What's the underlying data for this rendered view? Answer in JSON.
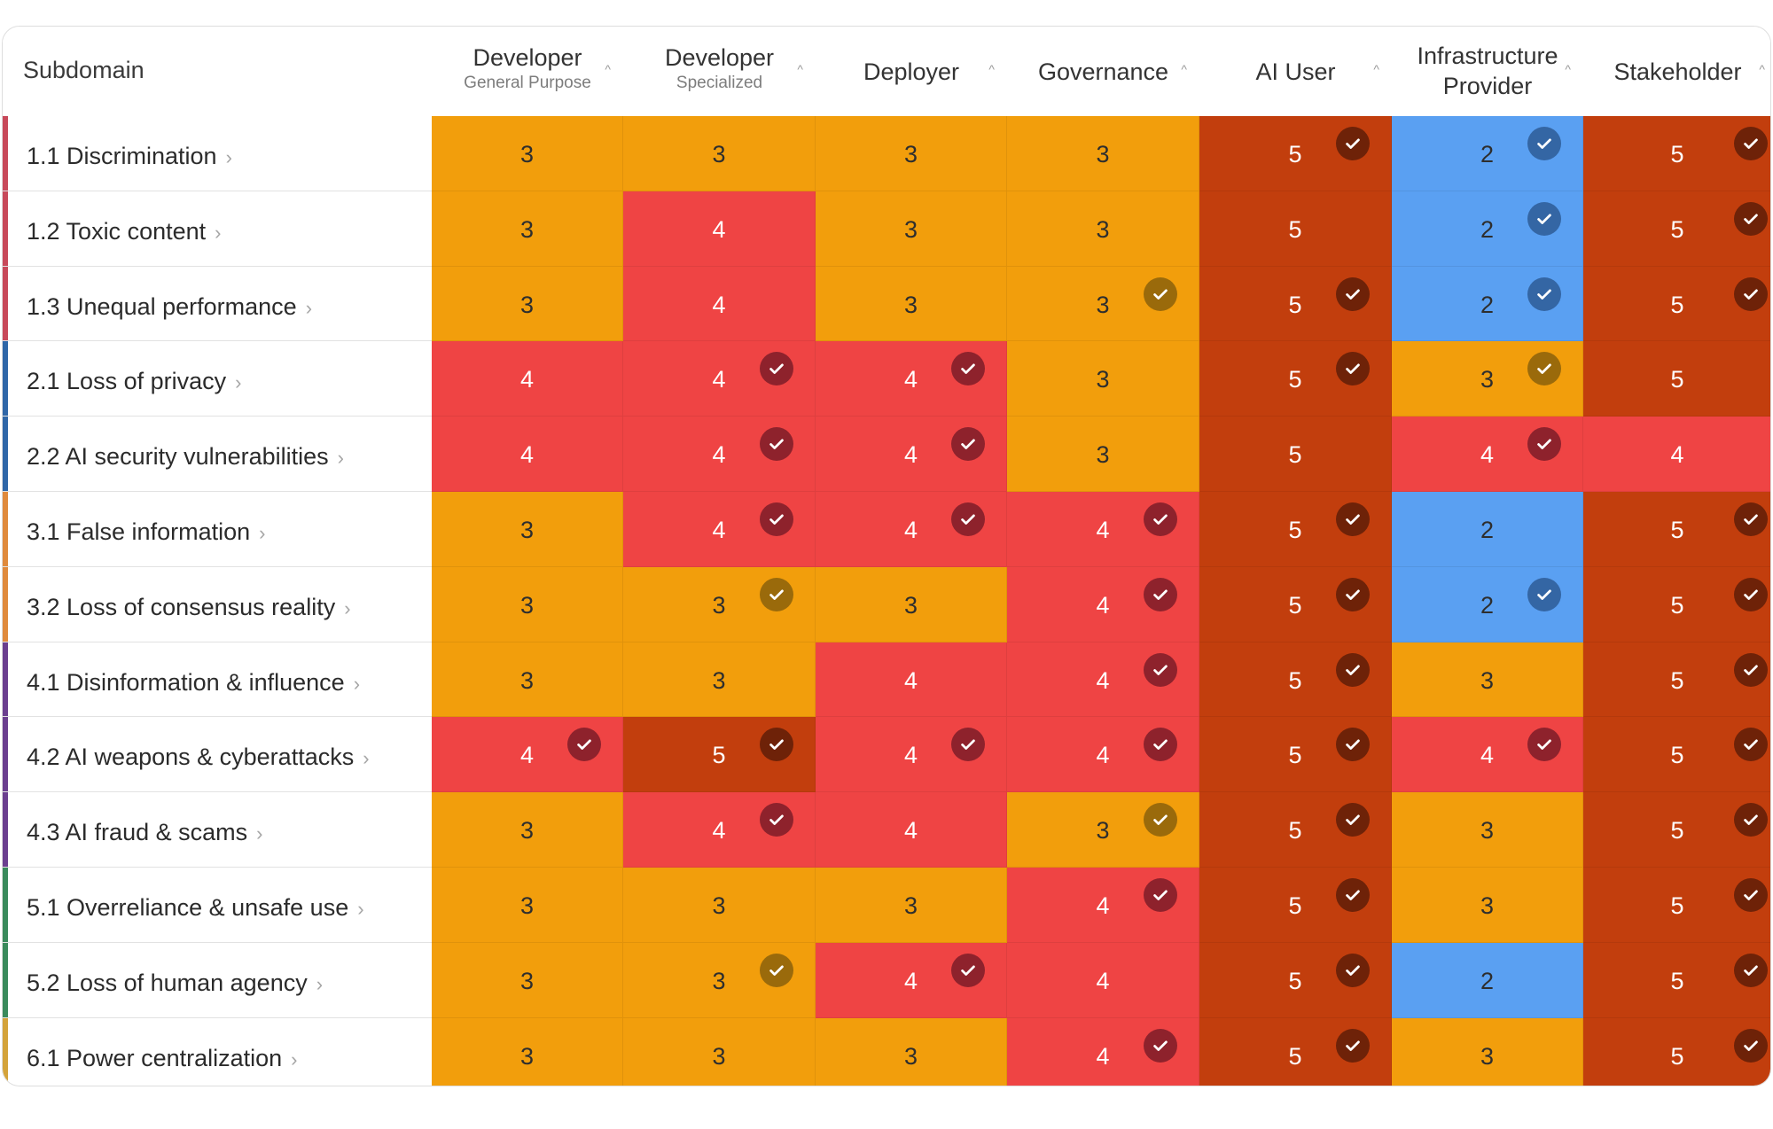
{
  "header": {
    "subdomain_label": "Subdomain",
    "columns": [
      {
        "title": "Developer",
        "subtitle": "General Purpose"
      },
      {
        "title": "Developer",
        "subtitle": "Specialized"
      },
      {
        "title": "Deployer",
        "subtitle": ""
      },
      {
        "title": "Governance",
        "subtitle": ""
      },
      {
        "title": "AI User",
        "subtitle": ""
      },
      {
        "title": "Infrastructure",
        "subtitle": "Provider"
      },
      {
        "title": "Stakeholder",
        "subtitle": ""
      }
    ],
    "sort_icon": "chevron-up-icon"
  },
  "colors": {
    "score_2": "#5aa0f2",
    "score_3": "#f29e0c",
    "score_4": "#ef4444",
    "score_5": "#c23e0d"
  },
  "rows": [
    {
      "label": "1.1 Discrimination",
      "domain_color": "#c8495a",
      "scores": [
        3,
        3,
        3,
        3,
        5,
        2,
        5
      ],
      "checks": [
        false,
        false,
        false,
        false,
        true,
        true,
        true
      ]
    },
    {
      "label": "1.2 Toxic content",
      "domain_color": "#c8495a",
      "scores": [
        3,
        4,
        3,
        3,
        5,
        2,
        5
      ],
      "checks": [
        false,
        false,
        false,
        false,
        false,
        true,
        true
      ]
    },
    {
      "label": "1.3 Unequal performance",
      "domain_color": "#c8495a",
      "scores": [
        3,
        4,
        3,
        3,
        5,
        2,
        5
      ],
      "checks": [
        false,
        false,
        false,
        true,
        true,
        true,
        true
      ]
    },
    {
      "label": "2.1 Loss of privacy",
      "domain_color": "#2f67a8",
      "scores": [
        4,
        4,
        4,
        3,
        5,
        3,
        5
      ],
      "checks": [
        false,
        true,
        true,
        false,
        true,
        true,
        false
      ]
    },
    {
      "label": "2.2 AI security vulnerabilities",
      "domain_color": "#2f67a8",
      "scores": [
        4,
        4,
        4,
        3,
        5,
        4,
        4
      ],
      "checks": [
        false,
        true,
        true,
        false,
        false,
        true,
        false
      ]
    },
    {
      "label": "3.1 False information",
      "domain_color": "#e08a3c",
      "scores": [
        3,
        4,
        4,
        4,
        5,
        2,
        5
      ],
      "checks": [
        false,
        true,
        true,
        true,
        true,
        false,
        true
      ]
    },
    {
      "label": "3.2 Loss of consensus reality",
      "domain_color": "#e08a3c",
      "scores": [
        3,
        3,
        3,
        4,
        5,
        2,
        5
      ],
      "checks": [
        false,
        true,
        false,
        true,
        true,
        true,
        true
      ]
    },
    {
      "label": "4.1 Disinformation & influence",
      "domain_color": "#6b3f8f",
      "scores": [
        3,
        3,
        4,
        4,
        5,
        3,
        5
      ],
      "checks": [
        false,
        false,
        false,
        true,
        true,
        false,
        true
      ]
    },
    {
      "label": "4.2 AI weapons & cyberattacks",
      "domain_color": "#6b3f8f",
      "scores": [
        4,
        5,
        4,
        4,
        5,
        4,
        5
      ],
      "checks": [
        true,
        true,
        true,
        true,
        true,
        true,
        true
      ]
    },
    {
      "label": "4.3 AI fraud & scams",
      "domain_color": "#6b3f8f",
      "scores": [
        3,
        4,
        4,
        3,
        5,
        3,
        5
      ],
      "checks": [
        false,
        true,
        false,
        true,
        true,
        false,
        true
      ]
    },
    {
      "label": "5.1 Overreliance & unsafe use",
      "domain_color": "#3a8a5c",
      "scores": [
        3,
        3,
        3,
        4,
        5,
        3,
        5
      ],
      "checks": [
        false,
        false,
        false,
        true,
        true,
        false,
        true
      ]
    },
    {
      "label": "5.2 Loss of human agency",
      "domain_color": "#3a8a5c",
      "scores": [
        3,
        3,
        4,
        4,
        5,
        2,
        5
      ],
      "checks": [
        false,
        true,
        true,
        false,
        true,
        false,
        true
      ]
    },
    {
      "label": "6.1 Power centralization",
      "domain_color": "#d4a33a",
      "scores": [
        3,
        3,
        3,
        4,
        5,
        3,
        5
      ],
      "checks": [
        false,
        false,
        false,
        true,
        true,
        false,
        true
      ]
    }
  ]
}
